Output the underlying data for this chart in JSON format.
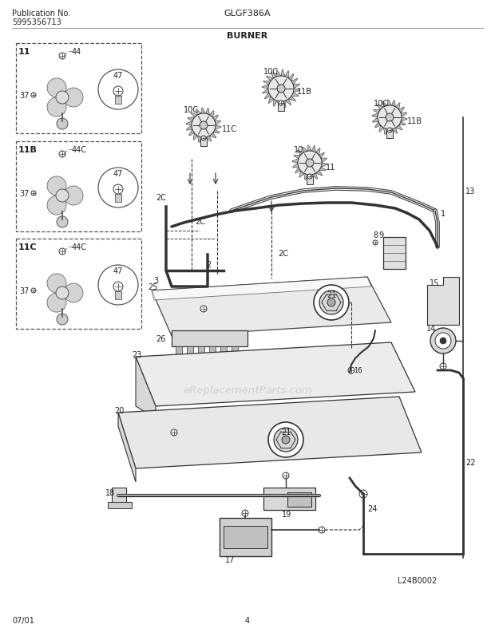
{
  "title": "BURNER",
  "model": "GLGF386A",
  "pub_no": "Publication No.",
  "pub_num": "5995356713",
  "date": "07/01",
  "page": "4",
  "watermark": "eReplacementParts.com",
  "diagram_ref": "L24B0002",
  "bg_color": "#ffffff",
  "line_color": "#333333",
  "gray_fill": "#d8d8d8",
  "light_fill": "#eeeeee"
}
